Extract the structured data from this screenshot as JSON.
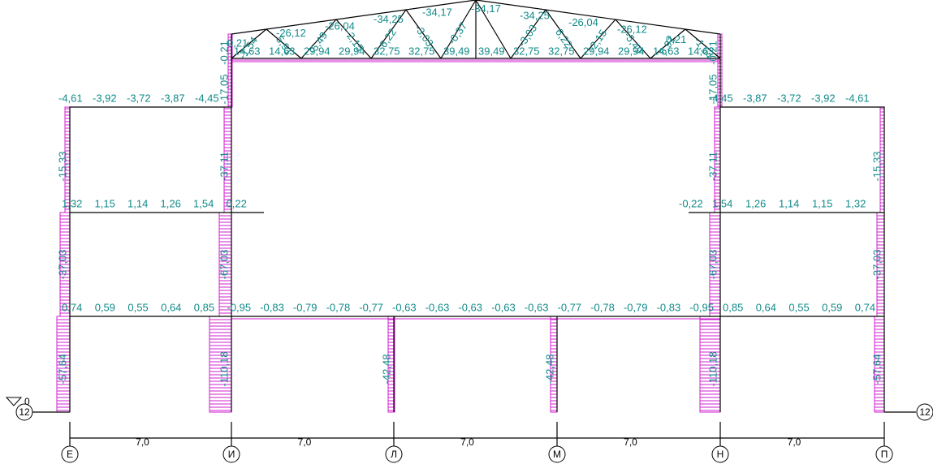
{
  "axes": [
    "Е",
    "И",
    "Л",
    "М",
    "Н",
    "П"
  ],
  "spans": [
    "7,0",
    "7,0",
    "7,0",
    "7,0",
    "7,0"
  ],
  "levels": {
    "left": "12",
    "right": "12",
    "zero": "0"
  },
  "beams": {
    "floor1": [
      "0,74",
      "0,59",
      "0,55",
      "0,64",
      "0,85",
      "-0,95",
      "-0,83",
      "-0,79",
      "-0,78",
      "-0,77",
      "-0,63",
      "-0,63",
      "-0,63",
      "-0,63",
      "-0,63",
      "-0,77",
      "-0,78",
      "-0,79",
      "-0,83",
      "-0,95",
      "0,85",
      "0,64",
      "0,55",
      "0,59",
      "0,74"
    ],
    "floor2_left": [
      "1,32",
      "1,15",
      "1,14",
      "1,26",
      "1,54",
      "0,22"
    ],
    "floor2_right": [
      "-0,22",
      "1,54",
      "1,26",
      "1,14",
      "1,15",
      "1,32"
    ],
    "floor3_left": [
      "-4,61",
      "-3,92",
      "-3,72",
      "-3,87",
      "-4,45"
    ],
    "floor3_right": [
      "-4,45",
      "-3,87",
      "-3,72",
      "-3,92",
      "-4,61"
    ]
  },
  "columns": {
    "ground": [
      "-57,64",
      "-110,18",
      "-42,48",
      "-42,48",
      "-110,18",
      "-57,64"
    ],
    "middle": [
      "-37,03",
      "-67,03",
      "-67,03",
      "-37,03"
    ],
    "upper": [
      "-15,33",
      "-37,11",
      "-37,11",
      "-15,33"
    ],
    "truss_left": [
      "-0,21",
      "-17,05"
    ],
    "truss_right": [
      "-17,05",
      "-0,21"
    ]
  },
  "truss": {
    "bottom": [
      "14,63",
      "14,63",
      "29,94",
      "29,94",
      "32,75",
      "32,75",
      "39,49",
      "39,49",
      "32,75",
      "32,75",
      "29,94",
      "29,94",
      "14,63",
      "14,63"
    ],
    "top": [
      "0,21",
      "-26,12",
      "-26,04",
      "-34,25",
      "-34,17",
      "-34,17",
      "-34,25",
      "-26,04",
      "-26,12",
      "0,21"
    ],
    "diagonals": [
      "-1,54",
      "5,91",
      "-5,49",
      "-2,15",
      "6,22",
      "-3,03",
      "-0,37",
      "-3,03",
      "6,22",
      "-2,15",
      "-5,49",
      "5,91",
      "-1,54"
    ]
  }
}
